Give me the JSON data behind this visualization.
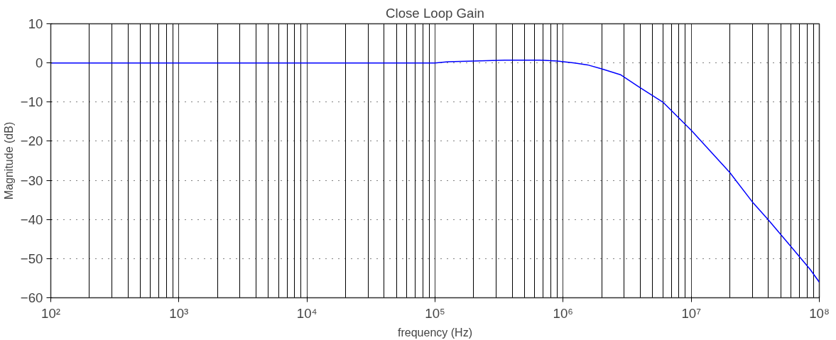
{
  "chart_data": {
    "type": "line",
    "title": "Close Loop Gain",
    "xlabel": "frequency (Hz)",
    "ylabel": "Magnitude (dB)",
    "log": "x",
    "grid": true,
    "marker": "none",
    "line_style": "solid",
    "xlim": [
      100,
      100000000
    ],
    "ylim": [
      -60,
      10
    ],
    "xticks": [
      {
        "value": 100,
        "label": "10²"
      },
      {
        "value": 1000,
        "label": "10³"
      },
      {
        "value": 10000,
        "label": "10⁴"
      },
      {
        "value": 100000,
        "label": "10⁵"
      },
      {
        "value": 1000000,
        "label": "10⁶"
      },
      {
        "value": 10000000,
        "label": "10⁷"
      },
      {
        "value": 100000000,
        "label": "10⁸"
      }
    ],
    "yticks": [
      -60,
      -50,
      -40,
      -30,
      -20,
      -10,
      0,
      10
    ],
    "x": [
      100,
      100000,
      126000,
      200000,
      350000,
      660000,
      900000,
      1230000,
      1550000,
      2000000,
      2800000,
      3900000,
      6000000,
      10000000,
      20000000,
      30000000,
      40000000,
      60000000,
      85000000,
      100000000
    ],
    "series": [
      {
        "color": "#0000ff",
        "values": [
          0,
          0,
          0.3,
          0.5,
          0.7,
          0.7,
          0.5,
          0,
          -0.5,
          -1.5,
          -3,
          -6.1,
          -10,
          -17.2,
          -28,
          -35.5,
          -40.1,
          -46.9,
          -52.8,
          -56
        ]
      }
    ]
  }
}
